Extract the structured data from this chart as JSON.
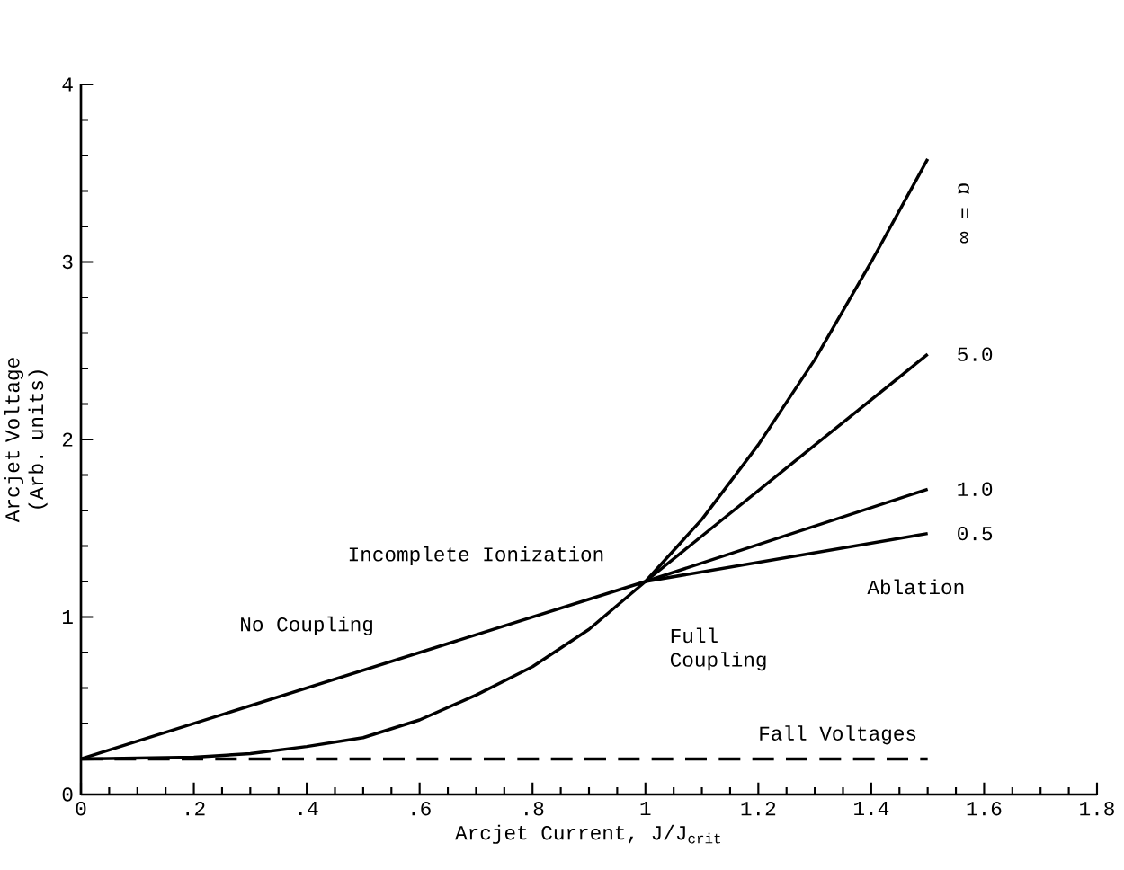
{
  "chart_data": {
    "type": "line",
    "xlabel": "Arcjet Current, J/J$_{crit}$",
    "ylabel": "Arcjet Voltage (Arb. units)",
    "xlim": [
      0,
      1.8
    ],
    "ylim": [
      0,
      4
    ],
    "xticks": [
      0,
      {
        "value": 0.2,
        "label": ".2"
      },
      {
        "value": 0.4,
        "label": ".4"
      },
      {
        "value": 0.6,
        "label": ".6"
      },
      {
        "value": 0.8,
        "label": ".8"
      },
      1,
      1.2,
      1.4,
      1.6,
      1.8
    ],
    "yticks": [
      0,
      1,
      2,
      3,
      4
    ],
    "marker": "none",
    "line_style": "solid",
    "series": [
      {
        "name": "1.0",
        "color": "#000000",
        "x": [
          0,
          1,
          1.5
        ],
        "values": [
          0.2,
          1.2,
          1.72
        ]
      },
      {
        "name": "0.5",
        "color": "#000000",
        "x": [
          1,
          1.5
        ],
        "values": [
          1.2,
          1.47
        ]
      },
      {
        "name": "5.0",
        "color": "#000000",
        "x": [
          1,
          1.5
        ],
        "values": [
          1.2,
          2.48
        ]
      },
      {
        "name": "α = ∞",
        "color": "#000000",
        "x": [
          0,
          0.2,
          0.3,
          0.4,
          0.5,
          0.6,
          0.7,
          0.8,
          0.9,
          1,
          1.1,
          1.2,
          1.3,
          1.4,
          1.5
        ],
        "values": [
          0.2,
          0.21,
          0.23,
          0.27,
          0.32,
          0.42,
          0.56,
          0.72,
          0.93,
          1.2,
          1.55,
          1.97,
          2.45,
          3.0,
          3.58
        ]
      },
      {
        "name": "Fall Voltages",
        "color": "#000000",
        "line_style": "dashed",
        "x": [
          0,
          1.5
        ],
        "values": [
          0.2,
          0.2
        ]
      }
    ],
    "annotations": [
      "Incomplete Ionization",
      "No Coupling",
      "Full Coupling",
      "Ablation"
    ]
  }
}
